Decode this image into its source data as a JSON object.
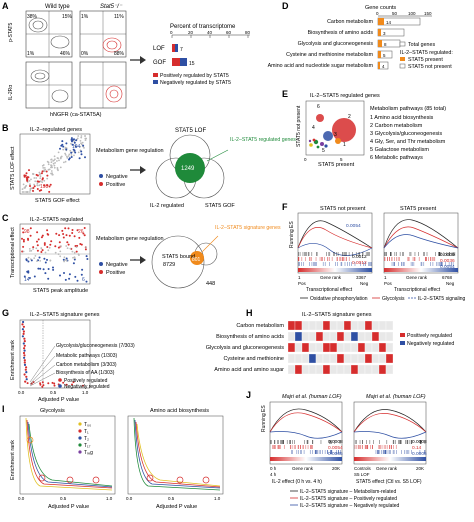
{
  "panels": {
    "A": {
      "label": "A",
      "col1": "Wild type",
      "col2": "Stat5⁻/⁻",
      "y_top": "p-STAT5",
      "y_bot": "IL-2Rα",
      "xlab": "hNGFR (ca-STAT5A)",
      "q": {
        "tl1": "38%",
        "tr1": "15%",
        "bl1": "1%",
        "br1": "46%",
        "tl2": "1%",
        "tr2": "11%",
        "bl2": "0%",
        "br2": "88%"
      },
      "bar_title": "Percent of transcriptome",
      "bar_ticks": [
        "0",
        "20",
        "40",
        "60",
        "80"
      ],
      "rows": [
        "LOF",
        "GOF"
      ],
      "vals": [
        "7",
        "15"
      ],
      "legend": [
        "Positively regulated by STAT5",
        "Negatively regulated by STAT5"
      ]
    },
    "B": {
      "label": "B",
      "title": "IL-2–regulated genes",
      "ylab": "STAT5 LOF effect",
      "xlab": "STAT5 GOF effect",
      "n1": "104",
      "n2": "198",
      "leg_title": "Metabolism gene regulation",
      "leg": [
        "Negative",
        "Positive"
      ],
      "venn_title": "STAT5 LOF",
      "venn_n": "1249",
      "venn_l": "IL-2 regulated",
      "venn_r": "STAT5 GOF",
      "venn_note": "IL-2–STAT5 regulated genes"
    },
    "C": {
      "label": "C",
      "title": "IL-2–STAT5 regulated",
      "ylab": "Transcriptional effect",
      "xlab": "STAT5 peak amplitude",
      "n1": "98",
      "n2": "26",
      "n3": "14",
      "n4": "6",
      "leg_title": "Metabolism gene regulation",
      "leg": [
        "Negative",
        "Positive"
      ],
      "venn_note": "IL-2–STAT5 signature genes",
      "venn_l": "STAT5 bound",
      "venn_l2": "8729",
      "venn_n": "801",
      "venn_r": "448"
    },
    "D": {
      "label": "D",
      "title": "Gene counts",
      "ticks": [
        "0",
        "50",
        "100",
        "150"
      ],
      "rows": [
        "Carbon metabolism",
        "Biosynthesis of amino acids",
        "Glycolysis and gluconeogenesis",
        "Cysteine and methionine metabolism",
        "Amino acid and nucleotide sugar metabolism"
      ],
      "vals": [
        "14",
        "3",
        "8",
        "5",
        "4"
      ],
      "leg": [
        "Total genes",
        "IL-2–STAT5 regulated:",
        "STAT5 present",
        "STAT5 not present"
      ]
    },
    "E": {
      "label": "E",
      "title": "IL-2–STAT5 regulated genes",
      "ylab": "STAT5 not present",
      "xlab": "STAT5 present",
      "ticks": [
        "0",
        "5"
      ],
      "leg_title": "Metabolism pathways (85 total)",
      "leg": [
        "1 Amino acid biosynthesis",
        "2 Carbon metabolism",
        "3 Glycolysis/gluconeogenesis",
        "4 Gly, Ser, and Thr metabolism",
        "5 Galactose metabolism",
        "6 Metabolic pathways"
      ]
    },
    "F": {
      "label": "F",
      "t1": "STAT5 not present",
      "t2": "STAT5 present",
      "ylab": "Running ES",
      "v1": [
        "0.0054",
        "0.0012",
        "0.0012"
      ],
      "v2": [
        "0.0009",
        "0.0036",
        "0.0054"
      ],
      "x1": [
        "1",
        "Pos",
        "Gene rank",
        "3367",
        "Neg"
      ],
      "x2": [
        "1",
        "Pos",
        "Gene rank",
        "6768",
        "Neg"
      ],
      "xlab": "Transcriptional effect",
      "leg": [
        "Oxidative phosphorylation",
        "Glycolysis",
        "IL-2–STAT5 signaling"
      ]
    },
    "G": {
      "label": "G",
      "title": "IL-2–STAT5 signature genes",
      "ylab": "Enrichment rank",
      "xlab": "Adjusted P value",
      "ann": [
        "Glycolysis/gluconeogenesis (7/303)",
        "Metabolic pathways (1/303)",
        "Carbon metabolism (3/303)",
        "Biosynthesis of AA (1/303)"
      ],
      "leg": [
        "Positively regulated",
        "Negatively regulated"
      ],
      "xticks": [
        "0.0",
        "0.5",
        "1.0"
      ]
    },
    "H": {
      "label": "H",
      "title": "IL-2–STAT5 signature genes",
      "rows": [
        "Carbon metabolism",
        "Biosynthesis of amino acids",
        "Glycolysis and gluconeogenesis",
        "Cysteine and methionine",
        "Amino acid and amino sugar"
      ],
      "leg": [
        "Positively regulated",
        "Negatively regulated"
      ]
    },
    "I": {
      "label": "I",
      "t1": "Glycolysis",
      "t2": "Amino acid biosynthesis",
      "ylab": "Enrichment rank",
      "xlab": "Adjusted P value",
      "leg": [
        "T₀₀",
        "T₁",
        "T₂",
        "T₁₇",
        "Tᵣₑg"
      ],
      "xticks": [
        "0.0",
        "0.5",
        "1.0"
      ]
    },
    "J": {
      "label": "J",
      "t1": "Majri et al. (human LOF)",
      "t2": "Majri et al. (human LOF)",
      "ylab": "Running ES",
      "v1": [
        "0.0008",
        "0.0054",
        "0.0005"
      ],
      "v2": [
        "0.0008",
        "0.14",
        "0.0005"
      ],
      "x1": [
        "0 h",
        "Gene rank",
        "4 h",
        "20K"
      ],
      "x2": [
        "Controls",
        "Gene rank",
        "S5 LOF",
        "20K"
      ],
      "xl1": "IL-2 effect (0 h vs. 4 h)",
      "xl2": "STAT5 effect (Ctl vs. S5 LOF)",
      "leg": [
        "IL-2–STAT5 signature – Metabolism-related",
        "IL-2–STAT5 signature – Positively regulated",
        "IL-2–STAT5 signature – Negatively regulated"
      ]
    }
  },
  "colors": {
    "red": "#d62d2d",
    "blue": "#2e4fa3",
    "green": "#1f8a3a",
    "orange": "#f08a1c",
    "gray": "#9a9a9a"
  }
}
